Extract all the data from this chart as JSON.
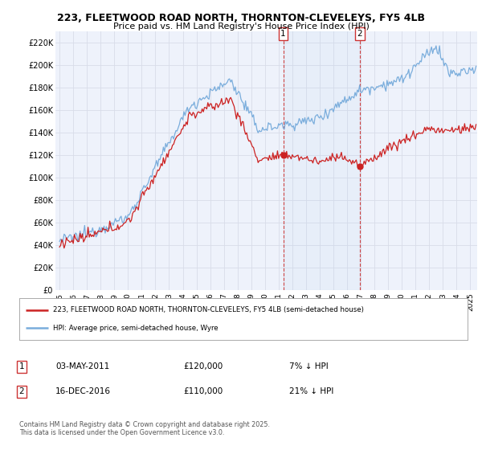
{
  "title": "223, FLEETWOOD ROAD NORTH, THORNTON-CLEVELEYS, FY5 4LB",
  "subtitle": "Price paid vs. HM Land Registry's House Price Index (HPI)",
  "ylim": [
    0,
    230000
  ],
  "yticks": [
    0,
    20000,
    40000,
    60000,
    80000,
    100000,
    120000,
    140000,
    160000,
    180000,
    200000,
    220000
  ],
  "ytick_labels": [
    "£0",
    "£20K",
    "£40K",
    "£60K",
    "£80K",
    "£100K",
    "£120K",
    "£140K",
    "£160K",
    "£180K",
    "£200K",
    "£220K"
  ],
  "background_color": "#ffffff",
  "plot_bg_color": "#eef2fb",
  "grid_color": "#d8dce8",
  "sale1_price": 120000,
  "sale1_label": "03-MAY-2011",
  "sale1_pct": "7% ↓ HPI",
  "sale2_price": 110000,
  "sale2_label": "16-DEC-2016",
  "sale2_pct": "21% ↓ HPI",
  "hpi_line_color": "#7aaddc",
  "price_line_color": "#cc2222",
  "vline_color": "#cc3333",
  "legend1_label": "223, FLEETWOOD ROAD NORTH, THORNTON-CLEVELEYS, FY5 4LB (semi-detached house)",
  "legend2_label": "HPI: Average price, semi-detached house, Wyre",
  "footer": "Contains HM Land Registry data © Crown copyright and database right 2025.\nThis data is licensed under the Open Government Licence v3.0.",
  "xstart": 1994.7,
  "xend": 2025.5
}
